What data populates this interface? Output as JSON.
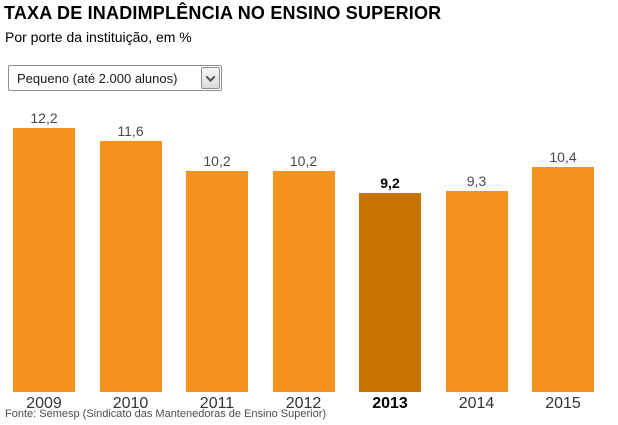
{
  "header": {
    "title": "TAXA DE INADIMPLÊNCIA NO ENSINO SUPERIOR",
    "subtitle": "Por porte da instituição, em %"
  },
  "filter": {
    "selected_option": "Pequeno (até 2.000 alunos)",
    "icon": "chevron-down-icon"
  },
  "chart_data": {
    "type": "bar",
    "title": "TAXA DE INADIMPLÊNCIA NO ENSINO SUPERIOR",
    "subtitle": "Por porte da instituição, em %",
    "categories": [
      "2009",
      "2010",
      "2011",
      "2012",
      "2013",
      "2014",
      "2015"
    ],
    "values": [
      12.2,
      11.6,
      10.2,
      10.2,
      9.2,
      9.3,
      10.4
    ],
    "value_labels": [
      "12,2",
      "11,6",
      "10,2",
      "10,2",
      "9,2",
      "9,3",
      "10,4"
    ],
    "highlight_index": 4,
    "highlighted_category": "2013",
    "ylim": [
      0,
      12.2
    ],
    "grid": false,
    "legend": "none",
    "colors": {
      "bar": "#F6921E",
      "highlight": "#C67302"
    }
  },
  "footer": {
    "source": "Fonte: Semesp (Sindicato das Mantenedoras de Ensino Superior)"
  }
}
